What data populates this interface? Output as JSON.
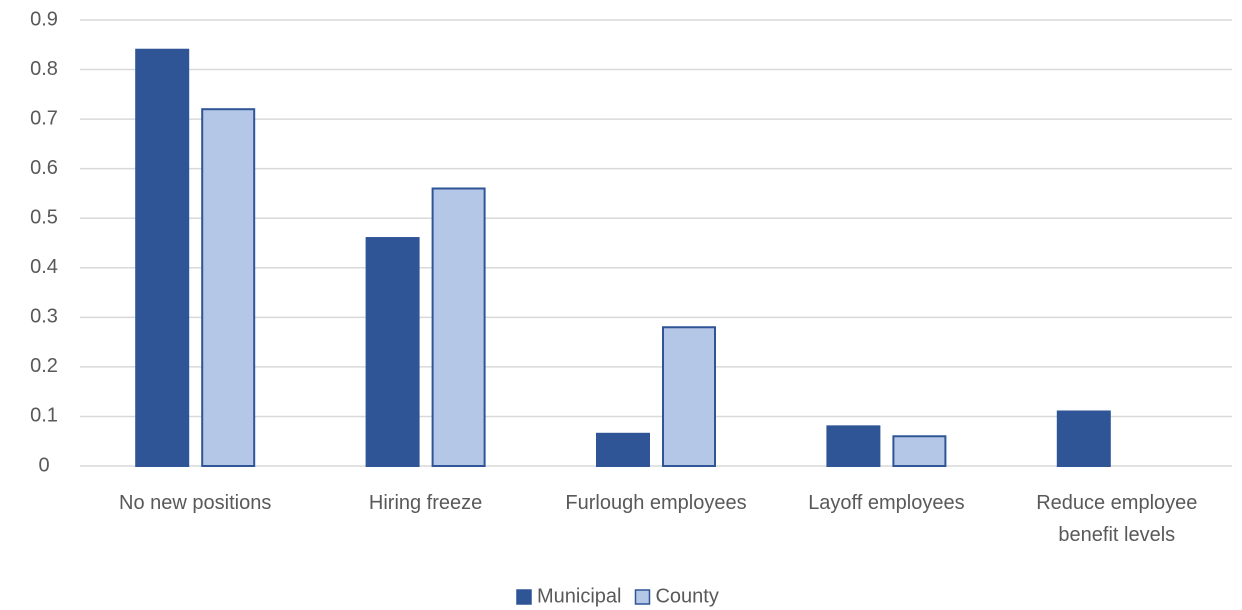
{
  "chart_data": {
    "type": "bar",
    "categories": [
      "No new positions",
      "Hiring freeze",
      "Furlough employees",
      "Layoff employees",
      "Reduce employee benefit levels"
    ],
    "series": [
      {
        "name": "Municipal",
        "color": "#2f5597",
        "values": [
          0.84,
          0.46,
          0.065,
          0.08,
          0.11
        ]
      },
      {
        "name": "County",
        "color": "#b4c7e7",
        "values": [
          0.72,
          0.56,
          0.28,
          0.06,
          0
        ]
      }
    ],
    "ylim": [
      0,
      0.9
    ],
    "yticks": [
      0,
      0.1,
      0.2,
      0.3,
      0.4,
      0.5,
      0.6,
      0.7,
      0.8,
      0.9
    ],
    "grid": true,
    "legend": "bottom",
    "edge_color": "#2f5597"
  }
}
